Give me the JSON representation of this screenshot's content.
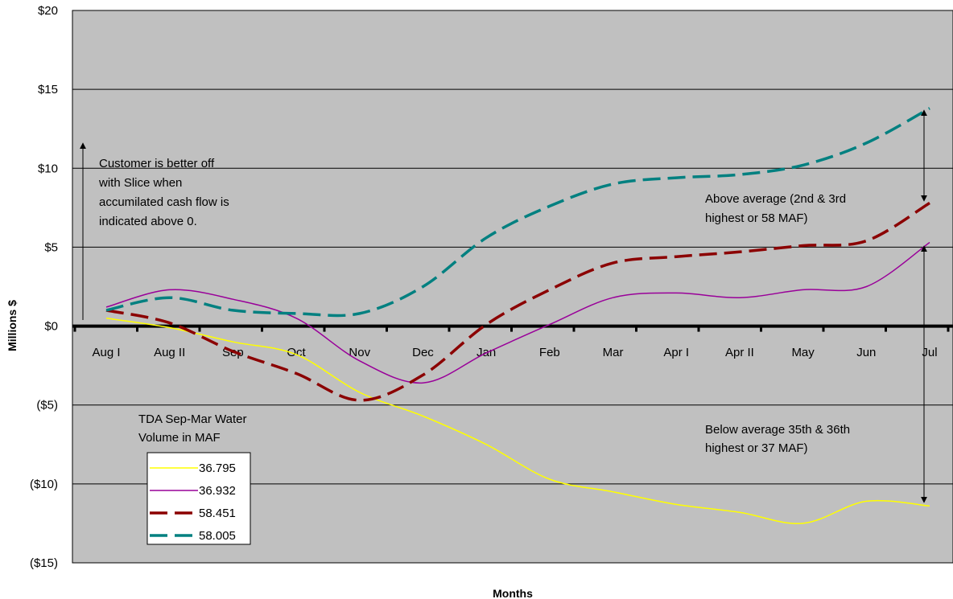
{
  "chart_data": {
    "type": "line",
    "title": "",
    "xlabel": "Months",
    "ylabel": "Millions $",
    "ylim": [
      -15,
      20
    ],
    "yticks": [
      20,
      15,
      10,
      5,
      0,
      -5,
      -10,
      -15
    ],
    "ytick_labels": [
      "$20",
      "$15",
      "$10",
      "$5",
      "$0",
      "($5)",
      "($10)",
      "($15)"
    ],
    "categories": [
      "Aug I",
      "Aug II",
      "Sep",
      "Oct",
      "Nov",
      "Dec",
      "Jan",
      "Feb",
      "Mar",
      "Apr I",
      "Apr II",
      "May",
      "Jun",
      "Jul"
    ],
    "grid": true,
    "plot_background": "#c0c0c0",
    "legend_title": "TDA Sep-Mar Water\nVolume in MAF",
    "legend_position": "bottom-left",
    "series": [
      {
        "name": "36.795",
        "color": "#ffff00",
        "style": "solid",
        "values": [
          0.5,
          -0.1,
          -1.0,
          -1.8,
          -4.2,
          -5.7,
          -7.5,
          -9.7,
          -10.5,
          -11.3,
          -11.8,
          -12.5,
          -11.1,
          -11.4
        ]
      },
      {
        "name": "36.932",
        "color": "#990099",
        "style": "solid",
        "values": [
          1.2,
          2.3,
          1.7,
          0.5,
          -2.2,
          -3.6,
          -1.7,
          0.1,
          1.8,
          2.1,
          1.8,
          2.3,
          2.5,
          5.3
        ]
      },
      {
        "name": "58.451",
        "color": "#8b0000",
        "style": "dashed",
        "values": [
          1.0,
          0.2,
          -1.6,
          -3.0,
          -4.7,
          -3.1,
          0.1,
          2.3,
          4.0,
          4.4,
          4.7,
          5.1,
          5.4,
          7.8
        ]
      },
      {
        "name": "58.005",
        "color": "#008080",
        "style": "dashed",
        "values": [
          1.0,
          1.8,
          1.0,
          0.8,
          0.8,
          2.5,
          5.6,
          7.6,
          9.0,
          9.4,
          9.6,
          10.2,
          11.6,
          13.8
        ]
      }
    ],
    "annotations": [
      {
        "id": "better_off",
        "lines": [
          "Customer is better off",
          "with Slice when",
          "accumilated cash flow is",
          "indicated above 0."
        ]
      },
      {
        "id": "above_avg",
        "lines": [
          "Above average (2nd & 3rd",
          "highest or 58 MAF)"
        ]
      },
      {
        "id": "below_avg",
        "lines": [
          "Below average 35th & 36th",
          "highest or 37 MAF)"
        ]
      }
    ]
  }
}
